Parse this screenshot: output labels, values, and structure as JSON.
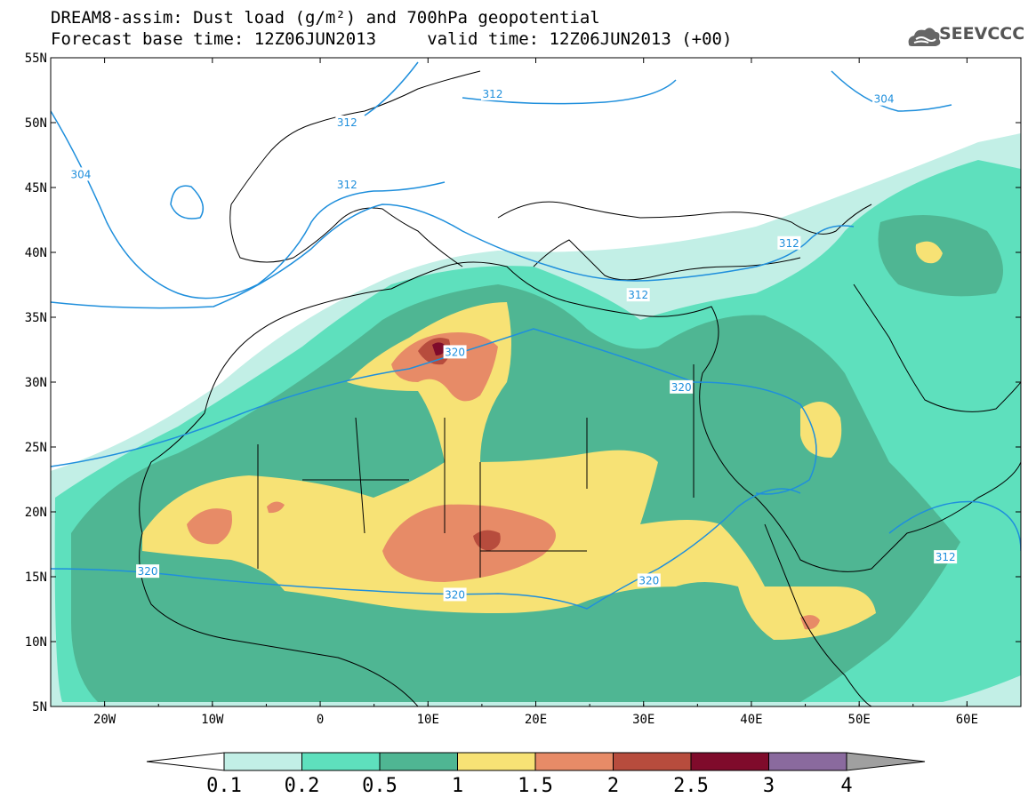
{
  "header": {
    "title_line1": "DREAM8-assim: Dust load (g/m²) and 700hPa geopotential",
    "title_line2": "Forecast base time: 12Z06JUN2013     valid time: 12Z06JUN2013 (+00)"
  },
  "logo": {
    "text": "SEEVCCC",
    "icon": "cloud-icon"
  },
  "map": {
    "lat_labels": [
      "55N",
      "50N",
      "45N",
      "40N",
      "35N",
      "30N",
      "25N",
      "20N",
      "15N",
      "10N",
      "5N"
    ],
    "lon_labels": [
      "20W",
      "10W",
      "0",
      "10E",
      "20E",
      "30E",
      "40E",
      "50E",
      "60E"
    ],
    "lat_range": [
      5,
      55
    ],
    "lon_range": [
      -25,
      65
    ],
    "contour_labels": [
      {
        "text": "312",
        "lon": 2.5,
        "lat": 50.0
      },
      {
        "text": "312",
        "lon": 2.5,
        "lat": 45.2
      },
      {
        "text": "304",
        "lon": -22.2,
        "lat": 46.0
      },
      {
        "text": "312",
        "lon": 16.0,
        "lat": 52.2
      },
      {
        "text": "304",
        "lon": 52.3,
        "lat": 51.8
      },
      {
        "text": "312",
        "lon": 29.5,
        "lat": 36.7
      },
      {
        "text": "312",
        "lon": 43.5,
        "lat": 40.7
      },
      {
        "text": "320",
        "lon": 12.5,
        "lat": 32.3
      },
      {
        "text": "320",
        "lon": 33.5,
        "lat": 29.6
      },
      {
        "text": "320",
        "lon": -16.0,
        "lat": 15.4
      },
      {
        "text": "320",
        "lon": 12.5,
        "lat": 13.6
      },
      {
        "text": "320",
        "lon": 30.5,
        "lat": 14.7
      },
      {
        "text": "312",
        "lon": 58.0,
        "lat": 16.5
      }
    ]
  },
  "colors": {
    "c01": "#c2efe6",
    "c02": "#5ee0bd",
    "c05": "#4fb693",
    "c1": "#f7e275",
    "c15": "#e78b67",
    "c2": "#b74c3d",
    "c25": "#7f0b2b",
    "c3": "#8a6a9e",
    "c4": "#a0a0a0",
    "contour": "#1f8fdc"
  },
  "colorbar": {
    "labels": [
      "0.1",
      "0.2",
      "0.5",
      "1",
      "1.5",
      "2",
      "2.5",
      "3",
      "4"
    ]
  }
}
